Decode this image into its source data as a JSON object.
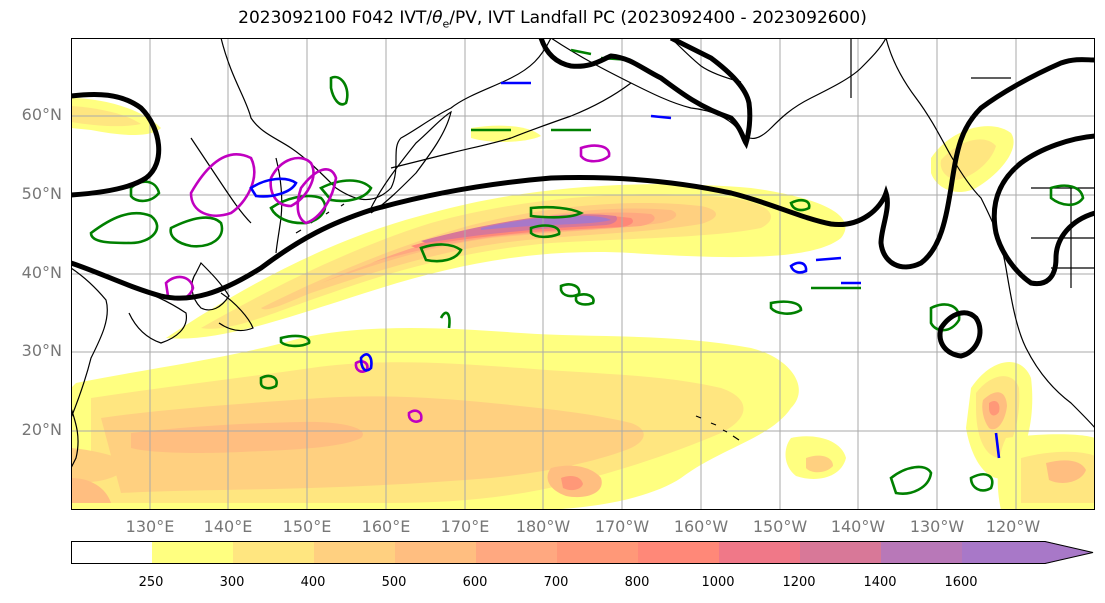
{
  "title": {
    "prefix": "2023092100 F042 IVT/",
    "theta_symbol": "θ",
    "theta_sub": "e",
    "suffix": "/PV, IVT Landfall PC (2023092400 - 2023092600)"
  },
  "map": {
    "lat_labels": [
      "60°N",
      "50°N",
      "40°N",
      "30°N",
      "20°N"
    ],
    "lon_labels": [
      "130°E",
      "140°E",
      "150°E",
      "160°E",
      "170°E",
      "180°W",
      "170°W",
      "160°W",
      "150°W",
      "140°W",
      "130°W",
      "120°W"
    ],
    "colors": {
      "ocean": "#ffffff",
      "gridline": "#aaaaaa",
      "coastline": "#000000",
      "pv_contour": "#000000",
      "theta_e_contour": "#008000",
      "blue_contour": "#0000ff",
      "magenta_contour": "#c000c0"
    }
  },
  "colorbar": {
    "tick_labels": [
      "250",
      "300",
      "400",
      "500",
      "600",
      "700",
      "800",
      "1000",
      "1200",
      "1400",
      "1600"
    ],
    "colors": [
      "#ffffff",
      "#ffff80",
      "#ffe680",
      "#ffd080",
      "#ffbe80",
      "#ffa880",
      "#ff9878",
      "#ff8878",
      "#f07888",
      "#d87898",
      "#b878b8",
      "#a878c8"
    ]
  }
}
